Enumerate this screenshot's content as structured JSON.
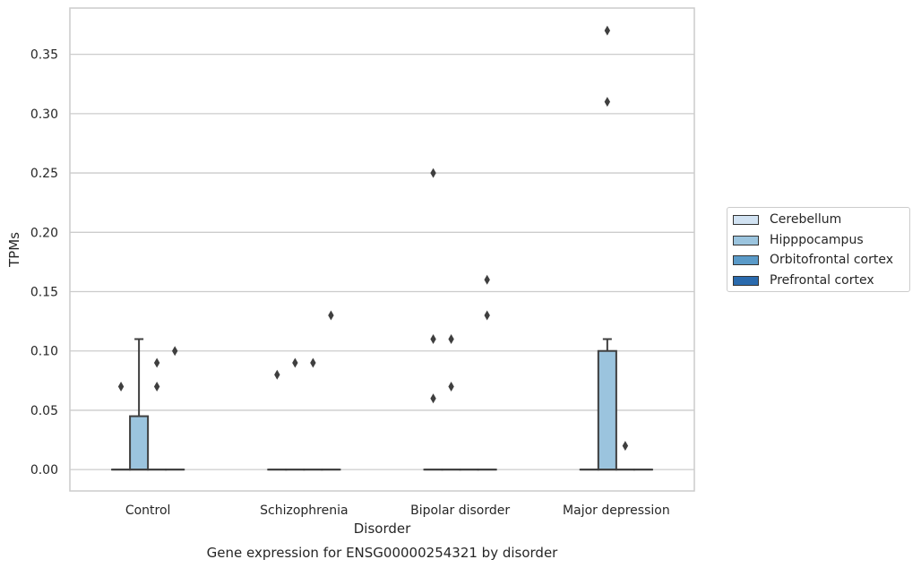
{
  "chart_data": {
    "type": "box",
    "title": "Gene expression for ENSG00000254321 by disorder",
    "xlabel": "Disorder",
    "ylabel": "TPMs",
    "ylim": [
      -0.018,
      0.389
    ],
    "yticks": [
      "0.00",
      "0.05",
      "0.10",
      "0.15",
      "0.20",
      "0.25",
      "0.30",
      "0.35"
    ],
    "grid": "horizontal",
    "legend_position": "right",
    "categories": [
      "Control",
      "Schizophrenia",
      "Bipolar disorder",
      "Major depression"
    ],
    "series": [
      {
        "name": "Cerebellum",
        "color": "#d1e2f2",
        "boxes": [
          {
            "q1": 0,
            "median": 0,
            "q3": 0,
            "whislo": 0,
            "whishi": 0,
            "outliers": [
              0.07
            ]
          },
          {
            "q1": 0,
            "median": 0,
            "q3": 0,
            "whislo": 0,
            "whishi": 0,
            "outliers": [
              0.08
            ]
          },
          {
            "q1": 0,
            "median": 0,
            "q3": 0,
            "whislo": 0,
            "whishi": 0,
            "outliers": [
              0.06,
              0.11,
              0.25
            ]
          },
          {
            "q1": 0,
            "median": 0,
            "q3": 0,
            "whislo": 0,
            "whishi": 0,
            "outliers": []
          }
        ]
      },
      {
        "name": "Hipppocampus",
        "color": "#9bc4de",
        "boxes": [
          {
            "q1": 0,
            "median": 0,
            "q3": 0.045,
            "whislo": 0,
            "whishi": 0.11,
            "outliers": []
          },
          {
            "q1": 0,
            "median": 0,
            "q3": 0,
            "whislo": 0,
            "whishi": 0,
            "outliers": [
              0.09
            ]
          },
          {
            "q1": 0,
            "median": 0,
            "q3": 0,
            "whislo": 0,
            "whishi": 0,
            "outliers": [
              0.07,
              0.11
            ]
          },
          {
            "q1": 0,
            "median": 0,
            "q3": 0.1,
            "whislo": 0,
            "whishi": 0.11,
            "outliers": [
              0.31,
              0.37
            ]
          }
        ]
      },
      {
        "name": "Orbitofrontal cortex",
        "color": "#5a9ac8",
        "boxes": [
          {
            "q1": 0,
            "median": 0,
            "q3": 0,
            "whislo": 0,
            "whishi": 0,
            "outliers": [
              0.07,
              0.09
            ]
          },
          {
            "q1": 0,
            "median": 0,
            "q3": 0,
            "whislo": 0,
            "whishi": 0,
            "outliers": [
              0.09
            ]
          },
          {
            "q1": 0,
            "median": 0,
            "q3": 0,
            "whislo": 0,
            "whishi": 0,
            "outliers": []
          },
          {
            "q1": 0,
            "median": 0,
            "q3": 0,
            "whislo": 0,
            "whishi": 0,
            "outliers": [
              0.02
            ]
          }
        ]
      },
      {
        "name": "Prefrontal cortex",
        "color": "#2a6aad",
        "boxes": [
          {
            "q1": 0,
            "median": 0,
            "q3": 0,
            "whislo": 0,
            "whishi": 0,
            "outliers": [
              0.1
            ]
          },
          {
            "q1": 0,
            "median": 0,
            "q3": 0,
            "whislo": 0,
            "whishi": 0,
            "outliers": [
              0.13
            ]
          },
          {
            "q1": 0,
            "median": 0,
            "q3": 0,
            "whislo": 0,
            "whishi": 0,
            "outliers": [
              0.13,
              0.16
            ]
          },
          {
            "q1": 0,
            "median": 0,
            "q3": 0,
            "whislo": 0,
            "whishi": 0,
            "outliers": []
          }
        ]
      }
    ]
  }
}
